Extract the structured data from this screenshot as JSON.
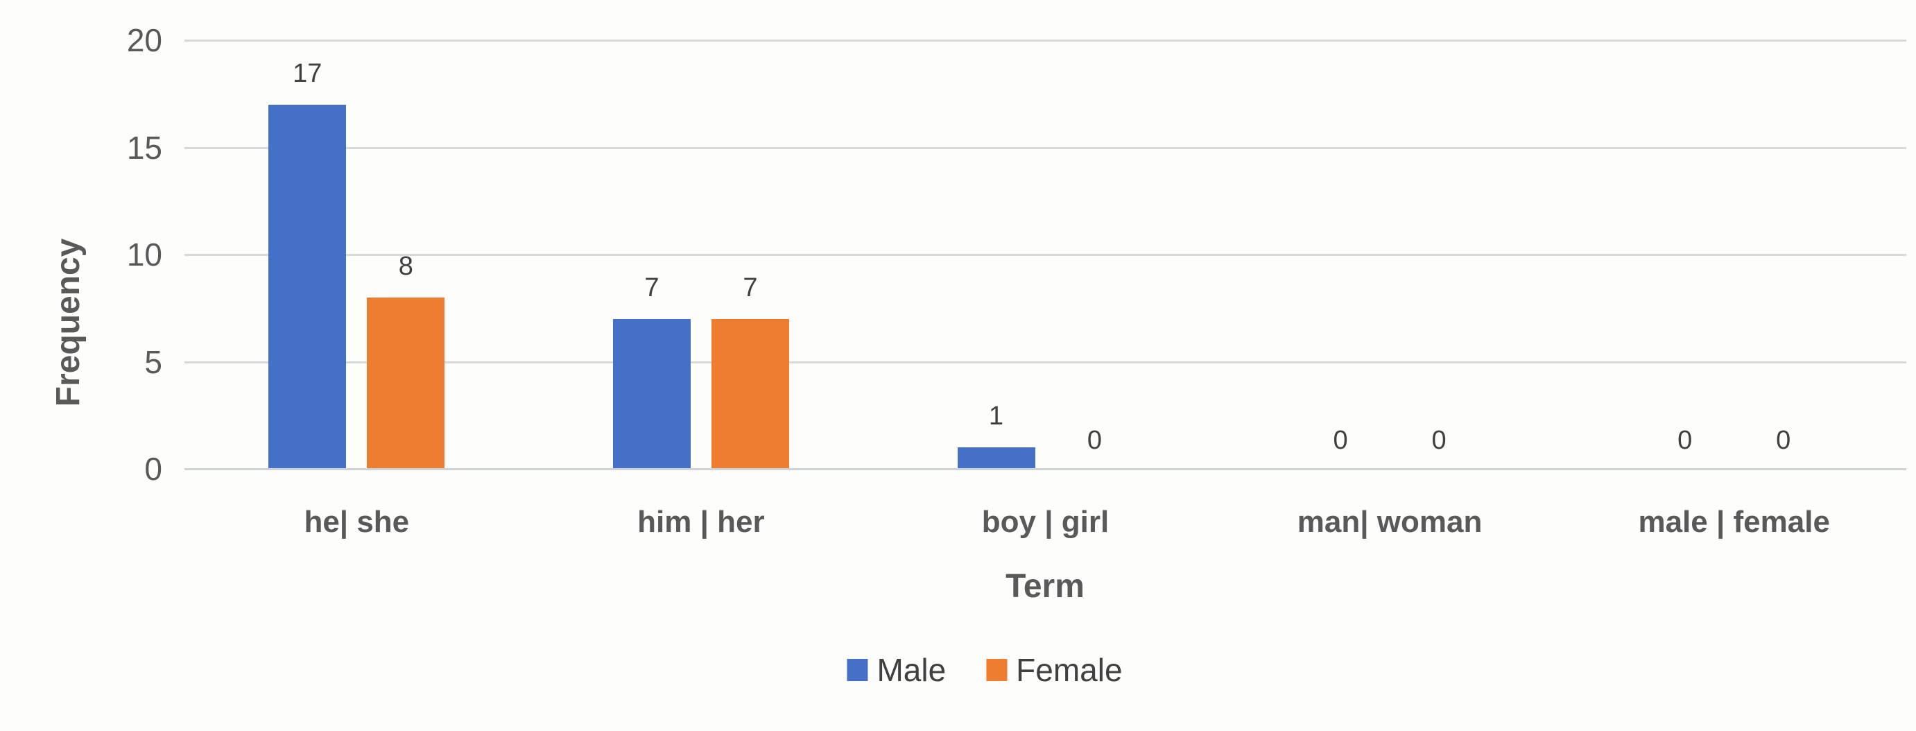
{
  "chart_data": {
    "type": "bar",
    "title": "",
    "xlabel": "Term",
    "ylabel": "Frequency",
    "categories": [
      "he| she",
      "him | her",
      "boy | girl",
      "man| woman",
      "male | female"
    ],
    "series": [
      {
        "name": "Male",
        "color": "#4470C8",
        "values": [
          17,
          7,
          1,
          0,
          0
        ]
      },
      {
        "name": "Female",
        "color": "#EF7D31",
        "values": [
          8,
          7,
          0,
          0,
          0
        ]
      }
    ],
    "data_labels": [
      {
        "series": "Male",
        "labels": [
          "17",
          "7",
          "1",
          "0",
          "0"
        ]
      },
      {
        "series": "Female",
        "labels": [
          "8",
          "7",
          "0",
          "0",
          "0"
        ]
      }
    ],
    "y_axis": {
      "min": 0,
      "max": 20,
      "tick_step": 5,
      "tick_labels": [
        "0",
        "5",
        "10",
        "15",
        "20"
      ]
    },
    "grid": true,
    "gridline_color": "#d9d9d9",
    "legend_position": "bottom",
    "legend_entries": [
      "Male",
      "Female"
    ],
    "text_colors": {
      "axis_tick": "#595959",
      "category_label": "#595959",
      "axis_title": "#595959",
      "data_label": "#404040",
      "legend": "#404040"
    },
    "background": "#fdfdfb"
  }
}
